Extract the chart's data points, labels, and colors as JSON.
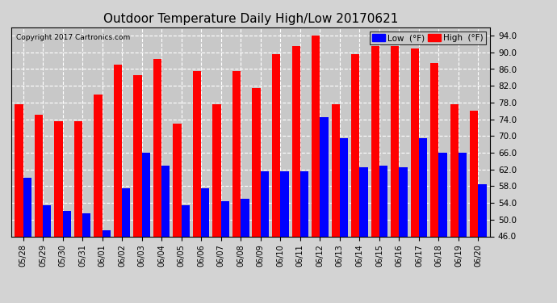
{
  "dates": [
    "05/28",
    "05/29",
    "05/30",
    "05/31",
    "06/01",
    "06/02",
    "06/03",
    "06/04",
    "06/05",
    "06/06",
    "06/07",
    "06/08",
    "06/09",
    "06/10",
    "06/11",
    "06/12",
    "06/13",
    "06/14",
    "06/15",
    "06/16",
    "06/17",
    "06/18",
    "06/19",
    "06/20"
  ],
  "highs": [
    77.5,
    75.0,
    73.5,
    73.5,
    80.0,
    87.0,
    84.5,
    88.5,
    73.0,
    85.5,
    77.5,
    85.5,
    81.5,
    89.5,
    91.5,
    94.0,
    77.5,
    89.5,
    91.5,
    91.5,
    91.0,
    87.5,
    77.5,
    76.0
  ],
  "lows": [
    60.0,
    53.5,
    52.0,
    51.5,
    47.5,
    57.5,
    66.0,
    63.0,
    53.5,
    57.5,
    54.5,
    55.0,
    61.5,
    61.5,
    61.5,
    74.5,
    69.5,
    62.5,
    63.0,
    62.5,
    69.5,
    66.0,
    66.0,
    58.5
  ],
  "high_color": "#ff0000",
  "low_color": "#0000ff",
  "bg_color": "#d3d3d3",
  "plot_bg_color": "#c8c8c8",
  "title": "Outdoor Temperature Daily High/Low 20170621",
  "title_fontsize": 11,
  "ylim_min": 46.0,
  "ylim_max": 96.0,
  "ytick_min": 46.0,
  "ytick_max": 94.0,
  "ytick_step": 4.0,
  "copyright_text": "Copyright 2017 Cartronics.com",
  "legend_low_label": "Low  (°F)",
  "legend_high_label": "High  (°F)",
  "bar_bottom": 46.0
}
